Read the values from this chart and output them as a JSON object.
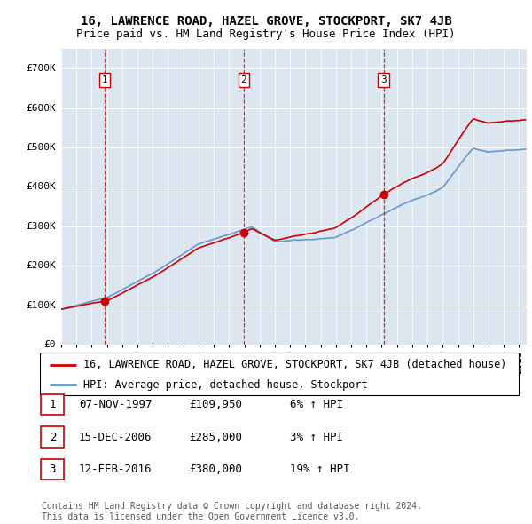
{
  "title": "16, LAWRENCE ROAD, HAZEL GROVE, STOCKPORT, SK7 4JB",
  "subtitle": "Price paid vs. HM Land Registry's House Price Index (HPI)",
  "xlim_start": 1995.0,
  "xlim_end": 2025.5,
  "ylim": [
    0,
    750000
  ],
  "yticks": [
    0,
    100000,
    200000,
    300000,
    400000,
    500000,
    600000,
    700000
  ],
  "ytick_labels": [
    "£0",
    "£100K",
    "£200K",
    "£300K",
    "£400K",
    "£500K",
    "£600K",
    "£700K"
  ],
  "background_color": "#dce6f1",
  "grid_color": "#ffffff",
  "sale_color": "#cc0000",
  "hpi_color": "#6699cc",
  "sale_dates": [
    1997.85,
    2006.96,
    2016.12
  ],
  "sale_prices": [
    109950,
    285000,
    380000
  ],
  "sale_labels": [
    "1",
    "2",
    "3"
  ],
  "legend_sale_label": "16, LAWRENCE ROAD, HAZEL GROVE, STOCKPORT, SK7 4JB (detached house)",
  "legend_hpi_label": "HPI: Average price, detached house, Stockport",
  "table_rows": [
    [
      "1",
      "07-NOV-1997",
      "£109,950",
      "6% ↑ HPI"
    ],
    [
      "2",
      "15-DEC-2006",
      "£285,000",
      "3% ↑ HPI"
    ],
    [
      "3",
      "12-FEB-2016",
      "£380,000",
      "19% ↑ HPI"
    ]
  ],
  "footnote": "Contains HM Land Registry data © Crown copyright and database right 2024.\nThis data is licensed under the Open Government Licence v3.0.",
  "title_fontsize": 10,
  "subtitle_fontsize": 9,
  "tick_fontsize": 8,
  "legend_fontsize": 8.5,
  "table_fontsize": 9,
  "footnote_fontsize": 7
}
